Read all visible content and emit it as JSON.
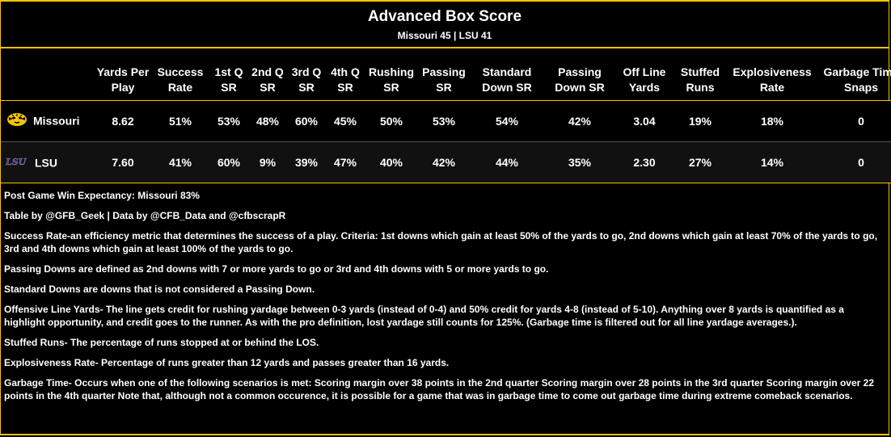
{
  "header": {
    "title": "Advanced Box Score",
    "subtitle": "Missouri 45 | LSU 41"
  },
  "table": {
    "columns": [
      "",
      "Yards Per Play",
      "Success Rate",
      "1st Q SR",
      "2nd Q SR",
      "3rd Q SR",
      "4th Q SR",
      "Rushing SR",
      "Passing SR",
      "Standard Down SR",
      "Passing Down SR",
      "Off Line Yards",
      "Stuffed Runs",
      "Explosiveness Rate",
      "Garbage Time Snaps"
    ],
    "rows": [
      {
        "team": "Missouri",
        "logo_icon": "missouri-tiger-logo",
        "values": [
          "8.62",
          "51%",
          "53%",
          "48%",
          "60%",
          "45%",
          "50%",
          "53%",
          "54%",
          "42%",
          "3.04",
          "19%",
          "18%",
          "0"
        ]
      },
      {
        "team": "LSU",
        "logo_icon": "lsu-logo",
        "values": [
          "7.60",
          "41%",
          "60%",
          "9%",
          "39%",
          "47%",
          "40%",
          "42%",
          "44%",
          "35%",
          "2.30",
          "27%",
          "14%",
          "0"
        ]
      }
    ]
  },
  "notes": [
    "Post Game Win Expectancy: Missouri 83%",
    "Table by @GFB_Geek | Data by @CFB_Data and @cfbscrapR",
    "Success Rate-an efficiency metric that determines the success of a play. Criteria: 1st downs which gain at least 50% of the yards to go, 2nd downs which gain at least 70% of the yards to go, 3rd and 4th downs which gain at least 100% of the yards to go.",
    "Passing Downs are defined as 2nd downs with 7 or more yards to go or 3rd and 4th downs with 5 or more yards to go.",
    "Standard Downs are downs that is not considered a Passing Down.",
    "Offensive Line Yards- The line gets credit for rushing yardage between 0-3 yards (instead of 0-4) and 50% credit for yards 4-8 (instead of 5-10). Anything over 8 yards is quantified as a highlight opportunity, and credit goes to the runner. As with the pro definition, lost yardage still counts for 125%. (Garbage time is filtered out for all line yardage averages.).",
    "Stuffed Runs- The percentage of runs stopped at or behind the LOS.",
    "Explosiveness Rate- Percentage of runs greater than 12 yards and passes greater than 16 yards.",
    "Garbage Time- Occurs when one of the following scenarios is met: Scoring margin over 38 points in the 2nd quarter Scoring margin over 28 points in the 3rd quarter Scoring margin over 22 points in the 4th quarter Note that, although not a common occurence, it is possible for a game that was in garbage time to come out garbage time during extreme comeback scenarios."
  ],
  "colors": {
    "accent": "#f5c400",
    "background": "#000000",
    "text": "#ffffff"
  }
}
